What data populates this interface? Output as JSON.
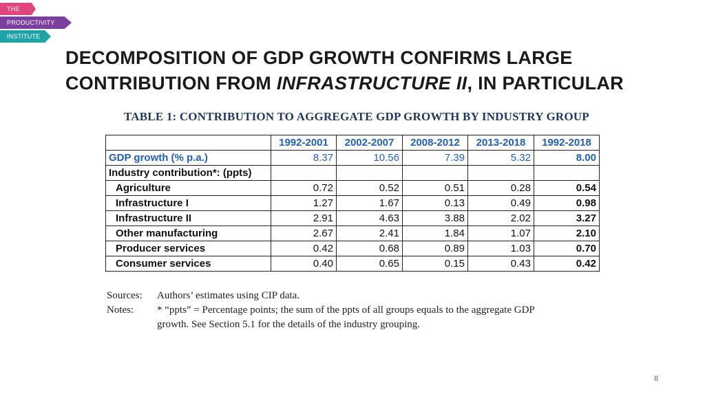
{
  "logo": {
    "line1": "THE",
    "line2": "PRODUCTIVITY",
    "line3": "INSTITUTE"
  },
  "title": {
    "line1": "DECOMPOSITION OF GDP GROWTH CONFIRMS LARGE",
    "line2_pre": "CONTRIBUTION FROM ",
    "line2_italic": "INFRASTRUCTURE II",
    "line2_post": ", IN PARTICULAR"
  },
  "table": {
    "caption": "TABLE 1: CONTRIBUTION TO AGGREGATE GDP GROWTH BY INDUSTRY GROUP",
    "columns": [
      "1992-2001",
      "2002-2007",
      "2008-2012",
      "2013-2018",
      "1992-2018"
    ],
    "gdp_row": {
      "label": "GDP growth (% p.a.)",
      "values": [
        "8.37",
        "10.56",
        "7.39",
        "5.32",
        "8.00"
      ]
    },
    "section_label": "Industry contribution*: (ppts)",
    "rows": [
      {
        "label": "Agriculture",
        "values": [
          "0.72",
          "0.52",
          "0.51",
          "0.28",
          "0.54"
        ]
      },
      {
        "label": "Infrastructure I",
        "values": [
          "1.27",
          "1.67",
          "0.13",
          "0.49",
          "0.98"
        ]
      },
      {
        "label": "Infrastructure II",
        "values": [
          "2.91",
          "4.63",
          "3.88",
          "2.02",
          "3.27"
        ]
      },
      {
        "label": "Other manufacturing",
        "values": [
          "2.67",
          "2.41",
          "1.84",
          "1.07",
          "2.10"
        ]
      },
      {
        "label": "Producer services",
        "values": [
          "0.42",
          "0.68",
          "0.89",
          "1.03",
          "0.70"
        ]
      },
      {
        "label": "Consumer services",
        "values": [
          "0.40",
          "0.65",
          "0.15",
          "0.43",
          "0.42"
        ]
      }
    ]
  },
  "notes": {
    "sources_key": "Sources:",
    "sources_text": "Authors’ estimates using CIP data.",
    "notes_key": "Notes:",
    "notes_text1": "* “ppts” = Percentage points; the sum of the ppts of all groups equals to the aggregate GDP",
    "notes_text2": "growth. See Section 5.1 for the details of the industry grouping."
  },
  "page_number": "8"
}
